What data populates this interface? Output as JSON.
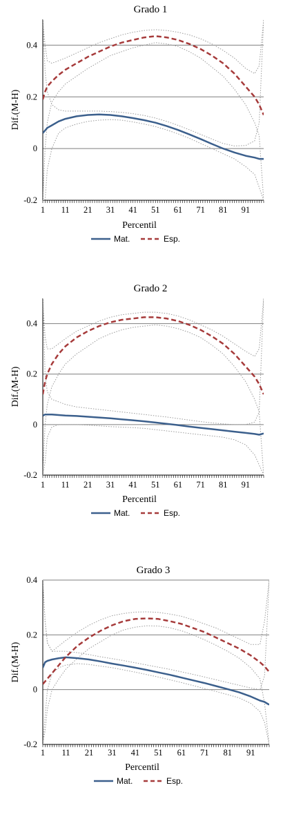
{
  "chart_data": [
    {
      "type": "line",
      "title": "Grado 1",
      "xlabel": "Percentil",
      "ylabel": "Dif.(M-H)",
      "xlim": [
        1,
        99
      ],
      "ylim": [
        -0.2,
        0.5
      ],
      "xticks": [
        "1",
        "11",
        "21",
        "31",
        "41",
        "51",
        "61",
        "71",
        "81",
        "91"
      ],
      "yticks": [
        "-0.2",
        "0",
        "0.2",
        "0.4"
      ],
      "grid": true,
      "legend_position": "bottom",
      "legend": [
        "Mat.",
        "Esp."
      ],
      "x": [
        1,
        2,
        3,
        5,
        8,
        11,
        16,
        21,
        26,
        31,
        36,
        41,
        46,
        51,
        56,
        61,
        66,
        71,
        76,
        81,
        86,
        91,
        95,
        97,
        99
      ],
      "series": [
        {
          "name": "Mat.",
          "style": "solid",
          "color": "#3b5f8c",
          "values": [
            0.06,
            0.07,
            0.08,
            0.09,
            0.105,
            0.115,
            0.125,
            0.13,
            0.132,
            0.13,
            0.125,
            0.118,
            0.11,
            0.1,
            0.087,
            0.072,
            0.055,
            0.037,
            0.018,
            0.0,
            -0.015,
            -0.028,
            -0.035,
            -0.04,
            -0.04
          ]
        },
        {
          "name": "Esp.",
          "style": "dashed",
          "color": "#a63a3a",
          "values": [
            0.19,
            0.22,
            0.24,
            0.26,
            0.285,
            0.305,
            0.33,
            0.355,
            0.375,
            0.395,
            0.41,
            0.42,
            0.43,
            0.435,
            0.43,
            0.42,
            0.405,
            0.385,
            0.36,
            0.33,
            0.29,
            0.24,
            0.2,
            0.17,
            0.13
          ]
        }
      ],
      "bands": [
        {
          "for": "Mat.",
          "upper": [
            0.5,
            0.3,
            0.22,
            0.17,
            0.15,
            0.145,
            0.145,
            0.145,
            0.145,
            0.143,
            0.14,
            0.135,
            0.128,
            0.118,
            0.105,
            0.09,
            0.073,
            0.055,
            0.037,
            0.02,
            0.01,
            0.012,
            0.03,
            0.1,
            0.5
          ],
          "lower": [
            -0.2,
            -0.2,
            -0.08,
            0.0,
            0.06,
            0.08,
            0.095,
            0.105,
            0.11,
            0.112,
            0.11,
            0.103,
            0.095,
            0.085,
            0.072,
            0.057,
            0.04,
            0.02,
            0.0,
            -0.02,
            -0.04,
            -0.07,
            -0.1,
            -0.15,
            -0.2
          ]
        },
        {
          "for": "Esp.",
          "upper": [
            0.5,
            0.4,
            0.34,
            0.33,
            0.34,
            0.35,
            0.37,
            0.39,
            0.41,
            0.425,
            0.44,
            0.45,
            0.457,
            0.46,
            0.457,
            0.45,
            0.44,
            0.425,
            0.405,
            0.38,
            0.35,
            0.31,
            0.29,
            0.32,
            0.5
          ],
          "lower": [
            -0.2,
            0.0,
            0.1,
            0.18,
            0.22,
            0.25,
            0.28,
            0.31,
            0.335,
            0.36,
            0.375,
            0.39,
            0.4,
            0.41,
            0.405,
            0.395,
            0.375,
            0.35,
            0.315,
            0.28,
            0.23,
            0.17,
            0.1,
            0.05,
            -0.2
          ]
        }
      ]
    },
    {
      "type": "line",
      "title": "Grado 2",
      "xlabel": "Percentil",
      "ylabel": "Dif.(M-H)",
      "xlim": [
        1,
        99
      ],
      "ylim": [
        -0.2,
        0.5
      ],
      "xticks": [
        "1",
        "11",
        "21",
        "31",
        "41",
        "51",
        "61",
        "71",
        "81",
        "91"
      ],
      "yticks": [
        "-0.2",
        "0",
        "0.2",
        "0.4"
      ],
      "grid": true,
      "legend_position": "bottom",
      "legend": [
        "Mat.",
        "Esp."
      ],
      "x": [
        1,
        2,
        3,
        5,
        8,
        11,
        16,
        21,
        26,
        31,
        36,
        41,
        46,
        51,
        56,
        61,
        66,
        71,
        76,
        81,
        86,
        91,
        95,
        97,
        99
      ],
      "series": [
        {
          "name": "Mat.",
          "style": "solid",
          "color": "#3b5f8c",
          "values": [
            0.035,
            0.04,
            0.04,
            0.04,
            0.038,
            0.036,
            0.034,
            0.031,
            0.028,
            0.025,
            0.021,
            0.017,
            0.013,
            0.008,
            0.003,
            -0.002,
            -0.008,
            -0.013,
            -0.018,
            -0.023,
            -0.028,
            -0.033,
            -0.037,
            -0.04,
            -0.035
          ]
        },
        {
          "name": "Esp.",
          "style": "dashed",
          "color": "#a63a3a",
          "values": [
            0.12,
            0.17,
            0.2,
            0.24,
            0.28,
            0.31,
            0.345,
            0.37,
            0.39,
            0.405,
            0.415,
            0.42,
            0.425,
            0.425,
            0.42,
            0.41,
            0.395,
            0.375,
            0.35,
            0.32,
            0.28,
            0.23,
            0.19,
            0.16,
            0.12
          ]
        }
      ],
      "bands": [
        {
          "for": "Mat.",
          "upper": [
            0.5,
            0.2,
            0.13,
            0.1,
            0.09,
            0.08,
            0.07,
            0.065,
            0.06,
            0.055,
            0.05,
            0.045,
            0.04,
            0.035,
            0.03,
            0.024,
            0.018,
            0.012,
            0.007,
            0.003,
            0.0,
            0.0,
            0.01,
            0.05,
            0.5
          ],
          "lower": [
            -0.2,
            -0.15,
            -0.05,
            -0.01,
            0.0,
            0.0,
            0.0,
            -0.002,
            -0.005,
            -0.008,
            -0.01,
            -0.012,
            -0.015,
            -0.02,
            -0.025,
            -0.03,
            -0.035,
            -0.04,
            -0.045,
            -0.05,
            -0.06,
            -0.08,
            -0.12,
            -0.16,
            -0.2
          ]
        },
        {
          "for": "Esp.",
          "upper": [
            0.5,
            0.35,
            0.3,
            0.3,
            0.32,
            0.34,
            0.37,
            0.39,
            0.41,
            0.425,
            0.435,
            0.44,
            0.445,
            0.445,
            0.44,
            0.43,
            0.415,
            0.395,
            0.375,
            0.35,
            0.32,
            0.29,
            0.27,
            0.3,
            0.5
          ],
          "lower": [
            -0.2,
            0.0,
            0.08,
            0.15,
            0.2,
            0.24,
            0.28,
            0.31,
            0.34,
            0.36,
            0.375,
            0.385,
            0.39,
            0.395,
            0.39,
            0.38,
            0.365,
            0.345,
            0.315,
            0.28,
            0.23,
            0.17,
            0.1,
            0.05,
            -0.2
          ]
        }
      ]
    },
    {
      "type": "line",
      "title": "Grado 3",
      "xlabel": "Percentil",
      "ylabel": "Dif.(M-H)",
      "xlim": [
        1,
        99
      ],
      "ylim": [
        -0.2,
        0.4
      ],
      "xticks": [
        "1",
        "11",
        "21",
        "31",
        "41",
        "51",
        "61",
        "71",
        "81",
        "91"
      ],
      "yticks": [
        "-0.2",
        "0",
        "0.2",
        "0.4"
      ],
      "grid": true,
      "legend_position": "bottom",
      "legend": [
        "Mat.",
        "Esp."
      ],
      "x": [
        1,
        2,
        3,
        5,
        8,
        11,
        16,
        21,
        26,
        31,
        36,
        41,
        46,
        51,
        56,
        61,
        66,
        71,
        76,
        81,
        86,
        91,
        95,
        97,
        99
      ],
      "series": [
        {
          "name": "Mat.",
          "style": "solid",
          "color": "#3b5f8c",
          "values": [
            0.08,
            0.1,
            0.105,
            0.11,
            0.115,
            0.118,
            0.115,
            0.11,
            0.103,
            0.095,
            0.088,
            0.08,
            0.072,
            0.063,
            0.054,
            0.044,
            0.034,
            0.024,
            0.013,
            0.002,
            -0.01,
            -0.025,
            -0.04,
            -0.045,
            -0.055
          ]
        },
        {
          "name": "Esp.",
          "style": "dashed",
          "color": "#a63a3a",
          "values": [
            0.02,
            0.03,
            0.04,
            0.06,
            0.09,
            0.12,
            0.16,
            0.19,
            0.215,
            0.235,
            0.25,
            0.258,
            0.26,
            0.258,
            0.25,
            0.24,
            0.225,
            0.21,
            0.19,
            0.17,
            0.15,
            0.125,
            0.1,
            0.085,
            0.065
          ]
        }
      ],
      "bands": [
        {
          "for": "Mat.",
          "upper": [
            0.4,
            0.25,
            0.17,
            0.14,
            0.14,
            0.14,
            0.135,
            0.128,
            0.12,
            0.113,
            0.106,
            0.098,
            0.09,
            0.082,
            0.074,
            0.065,
            0.056,
            0.046,
            0.036,
            0.026,
            0.016,
            0.006,
            0.0,
            0.05,
            0.4
          ],
          "lower": [
            -0.2,
            -0.1,
            0.0,
            0.06,
            0.08,
            0.09,
            0.095,
            0.092,
            0.086,
            0.08,
            0.072,
            0.064,
            0.055,
            0.046,
            0.036,
            0.026,
            0.015,
            0.004,
            -0.007,
            -0.018,
            -0.03,
            -0.05,
            -0.08,
            -0.12,
            -0.2
          ]
        },
        {
          "for": "Esp.",
          "upper": [
            0.4,
            0.25,
            0.17,
            0.14,
            0.16,
            0.18,
            0.21,
            0.235,
            0.255,
            0.27,
            0.278,
            0.283,
            0.284,
            0.282,
            0.276,
            0.268,
            0.255,
            0.24,
            0.225,
            0.205,
            0.185,
            0.165,
            0.165,
            0.25,
            0.4
          ],
          "lower": [
            -0.2,
            -0.15,
            -0.07,
            0.0,
            0.04,
            0.075,
            0.115,
            0.15,
            0.175,
            0.2,
            0.218,
            0.228,
            0.233,
            0.232,
            0.226,
            0.215,
            0.2,
            0.182,
            0.162,
            0.14,
            0.115,
            0.08,
            0.04,
            -0.05,
            -0.2
          ]
        }
      ]
    }
  ]
}
